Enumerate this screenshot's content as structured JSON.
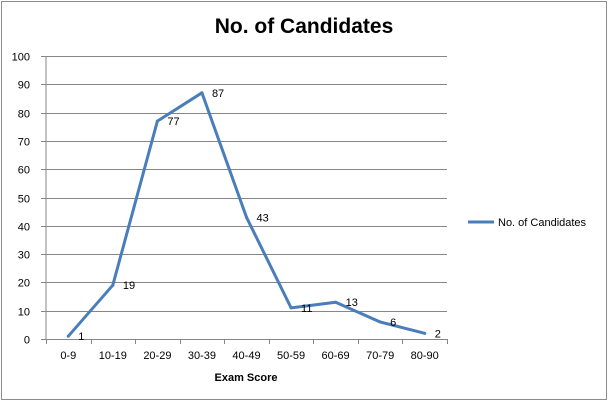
{
  "chart_data": {
    "type": "line",
    "title": "No. of Candidates",
    "xlabel": "Exam Score",
    "ylabel": "",
    "categories": [
      "0-9",
      "10-19",
      "20-29",
      "30-39",
      "40-49",
      "50-59",
      "60-69",
      "70-79",
      "80-90"
    ],
    "series": [
      {
        "name": "No. of Candidates",
        "values": [
          1,
          19,
          77,
          87,
          43,
          11,
          13,
          6,
          2
        ],
        "color": "#4a7ebb"
      }
    ],
    "ylim": [
      0,
      100
    ],
    "yticks": [
      0,
      10,
      20,
      30,
      40,
      50,
      60,
      70,
      80,
      90,
      100
    ],
    "grid": true,
    "legend_position": "right",
    "data_labels": true
  }
}
